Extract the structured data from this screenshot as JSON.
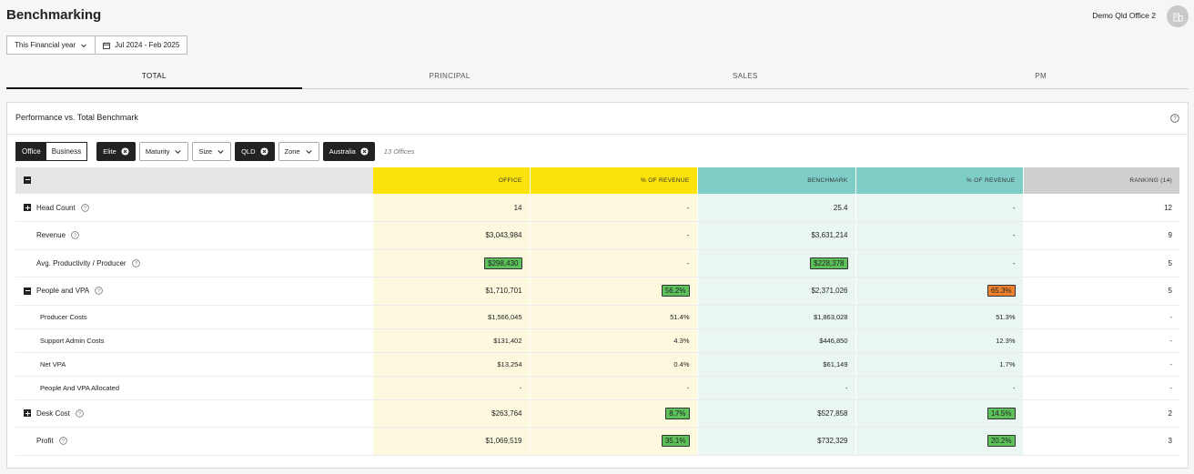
{
  "header": {
    "title": "Benchmarking",
    "org_name": "Demo Qld Office 2"
  },
  "filters": {
    "period": "This Financial year",
    "date_range": "Jul 2024 - Feb 2025"
  },
  "tabs": [
    "TOTAL",
    "PRINCIPAL",
    "SALES",
    "PM"
  ],
  "panel": {
    "title": "Performance vs. Total Benchmark",
    "segment": {
      "office": "Office",
      "business": "Business"
    },
    "chips": {
      "elite": "Elite",
      "maturity": "Maturity",
      "size": "Size",
      "qld": "QLD",
      "zone": "Zone",
      "australia": "Australia"
    },
    "offices_count": "13 Offices"
  },
  "table": {
    "headers": {
      "office": "OFFICE",
      "office_rev": "% OF REVENUE",
      "benchmark": "BENCHMARK",
      "bench_rev": "% OF REVENUE",
      "ranking": "RANKING (14)"
    },
    "rows": [
      {
        "label": "Head Count",
        "office": "14",
        "office_rev": "-",
        "benchmark": "25.4",
        "bench_rev": "-",
        "rank": "12"
      },
      {
        "label": "Revenue",
        "office": "$3,043,984",
        "office_rev": "-",
        "benchmark": "$3,631,214",
        "bench_rev": "-",
        "rank": "9"
      },
      {
        "label": "Avg. Productivity / Producer",
        "office": "$298,430",
        "office_rev": "-",
        "benchmark": "$228,378",
        "bench_rev": "-",
        "rank": "5"
      },
      {
        "label": "People and VPA",
        "office": "$1,710,701",
        "office_rev": "56.2%",
        "benchmark": "$2,371,026",
        "bench_rev": "65.3%",
        "rank": "5"
      },
      {
        "label": "Producer Costs",
        "office": "$1,566,045",
        "office_rev": "51.4%",
        "benchmark": "$1,863,028",
        "bench_rev": "51.3%",
        "rank": "-"
      },
      {
        "label": "Support Admin Costs",
        "office": "$131,402",
        "office_rev": "4.3%",
        "benchmark": "$446,850",
        "bench_rev": "12.3%",
        "rank": "-"
      },
      {
        "label": "Net VPA",
        "office": "$13,254",
        "office_rev": "0.4%",
        "benchmark": "$61,149",
        "bench_rev": "1.7%",
        "rank": "-"
      },
      {
        "label": "People And VPA Allocated",
        "office": "-",
        "office_rev": "-",
        "benchmark": "-",
        "bench_rev": "-",
        "rank": "-"
      },
      {
        "label": "Desk Cost",
        "office": "$263,764",
        "office_rev": "8.7%",
        "benchmark": "$527,858",
        "bench_rev": "14.5%",
        "rank": "2"
      },
      {
        "label": "Profit",
        "office": "$1,069,519",
        "office_rev": "35.1%",
        "benchmark": "$732,329",
        "bench_rev": "20.2%",
        "rank": "3"
      }
    ]
  },
  "colors": {
    "office_header": "#fbe30a",
    "benchmark_header": "#7ecec7",
    "highlight_good": "#5cc15a",
    "highlight_bad": "#f1822d"
  }
}
